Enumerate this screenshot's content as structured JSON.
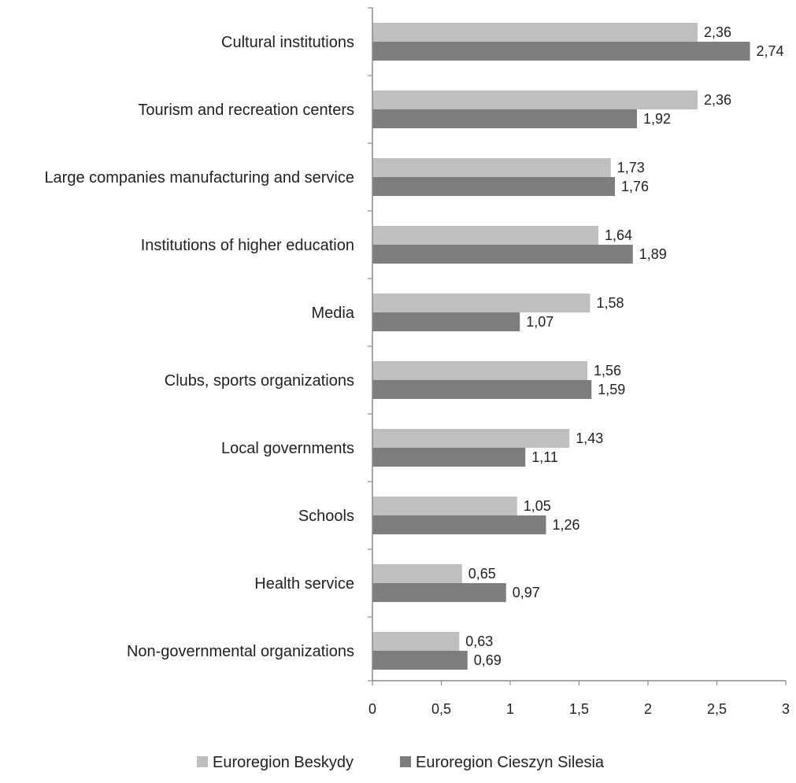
{
  "chart_data": {
    "type": "bar",
    "orientation": "horizontal",
    "categories": [
      "Cultural institutions",
      "Tourism and recreation centers",
      "Large companies manufacturing and service",
      "Institutions of higher education",
      "Media",
      "Clubs, sports organizations",
      "Local governments",
      "Schools",
      "Health service",
      "Non-governmental organizations"
    ],
    "series": [
      {
        "name": "Euroregion Beskydy",
        "color": "#bfbfc1",
        "values": [
          2.36,
          2.36,
          1.73,
          1.64,
          1.58,
          1.56,
          1.43,
          1.05,
          0.65,
          0.63
        ],
        "labels": [
          "2,36",
          "2,36",
          "1,73",
          "1,64",
          "1,58",
          "1,56",
          "1,43",
          "1,05",
          "0,65",
          "0,63"
        ]
      },
      {
        "name": "Euroregion Cieszyn Silesia",
        "color": "#7d7d80",
        "values": [
          2.74,
          1.92,
          1.76,
          1.89,
          1.07,
          1.59,
          1.11,
          1.26,
          0.97,
          0.69
        ],
        "labels": [
          "2,74",
          "1,92",
          "1,76",
          "1,89",
          "1,07",
          "1,59",
          "1,11",
          "1,26",
          "0,97",
          "0,69"
        ]
      }
    ],
    "xlim": [
      0,
      3
    ],
    "xticks": [
      0,
      0.5,
      1,
      1.5,
      2,
      2.5,
      3
    ],
    "xtick_labels": [
      "0",
      "0,5",
      "1",
      "1,5",
      "2",
      "2,5",
      "3"
    ],
    "title": "",
    "xlabel": "",
    "ylabel": "",
    "grid": false,
    "legend_position": "bottom"
  }
}
